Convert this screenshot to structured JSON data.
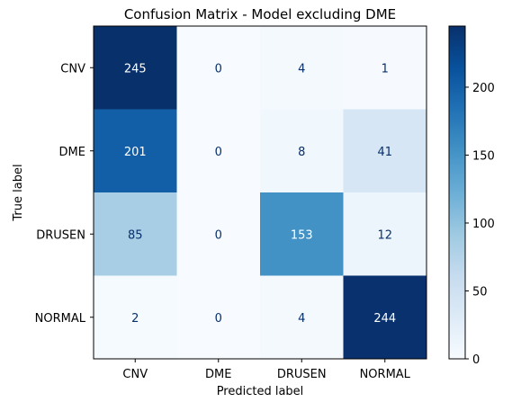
{
  "chart_data": {
    "type": "heatmap",
    "title": "Confusion Matrix - Model excluding DME",
    "xlabel": "Predicted label",
    "ylabel": "True label",
    "x_categories": [
      "CNV",
      "DME",
      "DRUSEN",
      "NORMAL"
    ],
    "y_categories": [
      "CNV",
      "DME",
      "DRUSEN",
      "NORMAL"
    ],
    "values": [
      [
        245,
        0,
        4,
        1
      ],
      [
        201,
        0,
        8,
        41
      ],
      [
        85,
        0,
        153,
        12
      ],
      [
        2,
        0,
        4,
        244
      ]
    ],
    "colormap": "Blues",
    "colorbar": {
      "min": 0,
      "max": 245,
      "ticks": [
        0,
        50,
        100,
        150,
        200
      ]
    }
  }
}
